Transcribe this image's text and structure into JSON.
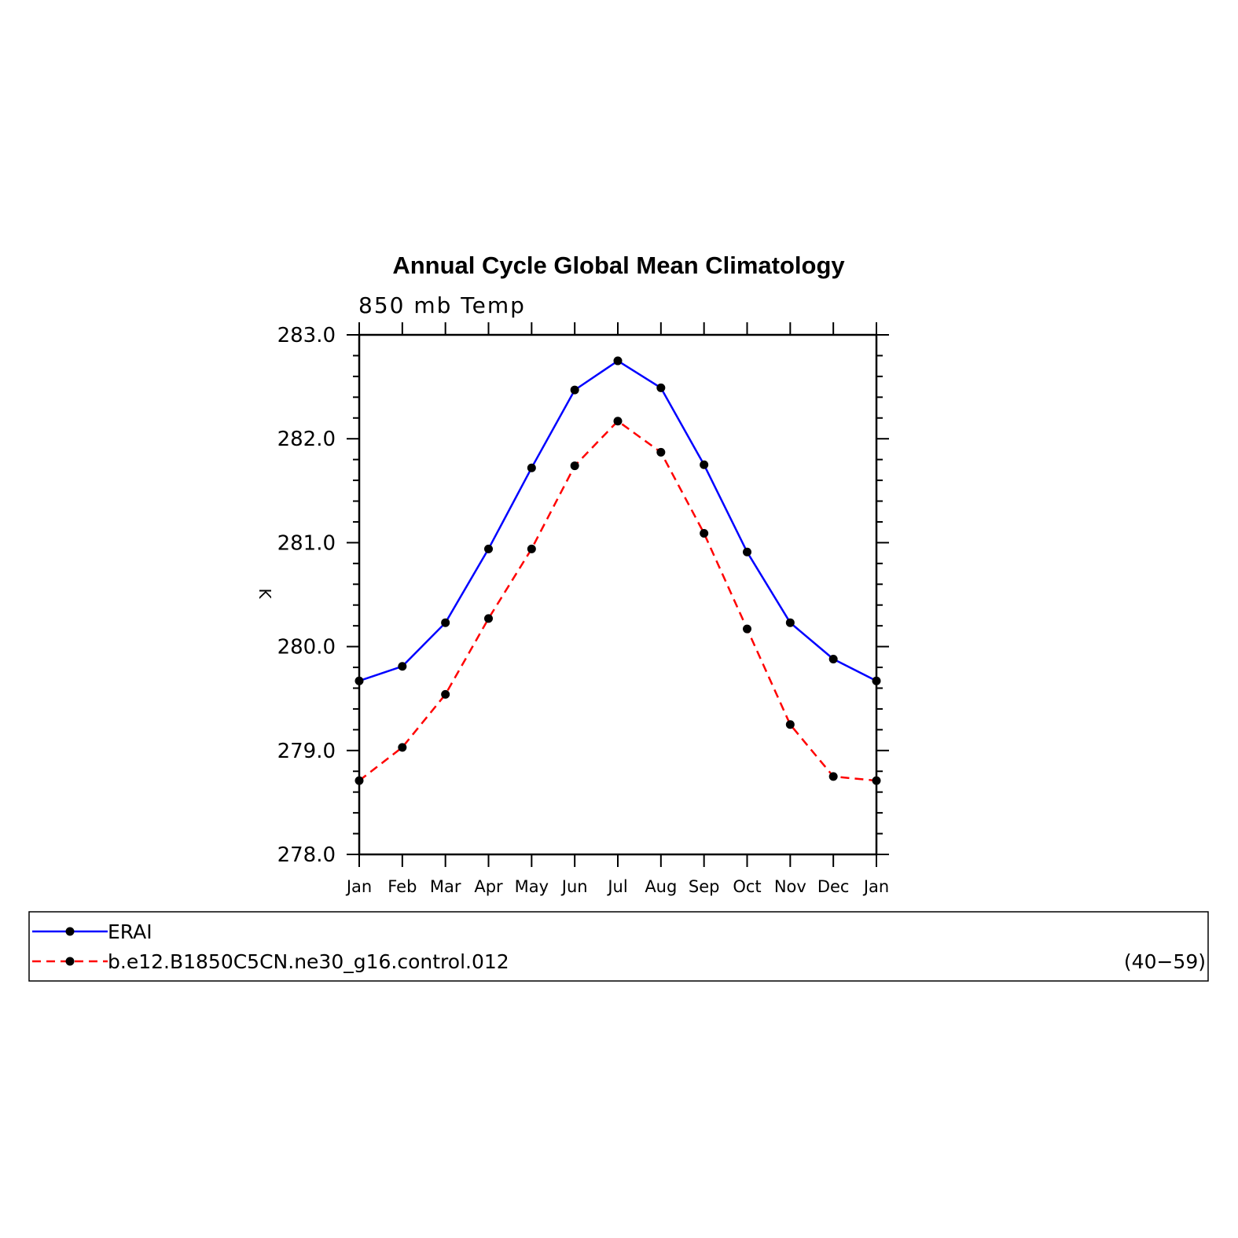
{
  "chart_data": {
    "type": "line",
    "title": "Annual Cycle Global Mean Climatology",
    "subtitle": "850 mb Temp",
    "xlabel": "",
    "ylabel": "K",
    "ylim": [
      278.0,
      283.0
    ],
    "yticks": [
      "278.0",
      "279.0",
      "280.0",
      "281.0",
      "282.0",
      "283.0"
    ],
    "categories": [
      "Jan",
      "Feb",
      "Mar",
      "Apr",
      "May",
      "Jun",
      "Jul",
      "Aug",
      "Sep",
      "Oct",
      "Nov",
      "Dec",
      "Jan"
    ],
    "grid": false,
    "legend_position": "bottom",
    "series": [
      {
        "name": "ERAI",
        "color": "#0000ff",
        "dash": "solid",
        "values": [
          279.67,
          279.81,
          280.23,
          280.94,
          281.72,
          282.47,
          282.75,
          282.49,
          281.75,
          280.91,
          280.23,
          279.88,
          279.67
        ]
      },
      {
        "name": "b.e12.B1850C5CN.ne30_g16.control.012",
        "color": "#ff0000",
        "dash": "dashed",
        "years": "(40−59)",
        "values": [
          278.71,
          279.03,
          279.54,
          280.27,
          280.94,
          281.74,
          282.17,
          281.87,
          281.09,
          280.17,
          279.25,
          278.75,
          278.71
        ]
      }
    ]
  }
}
